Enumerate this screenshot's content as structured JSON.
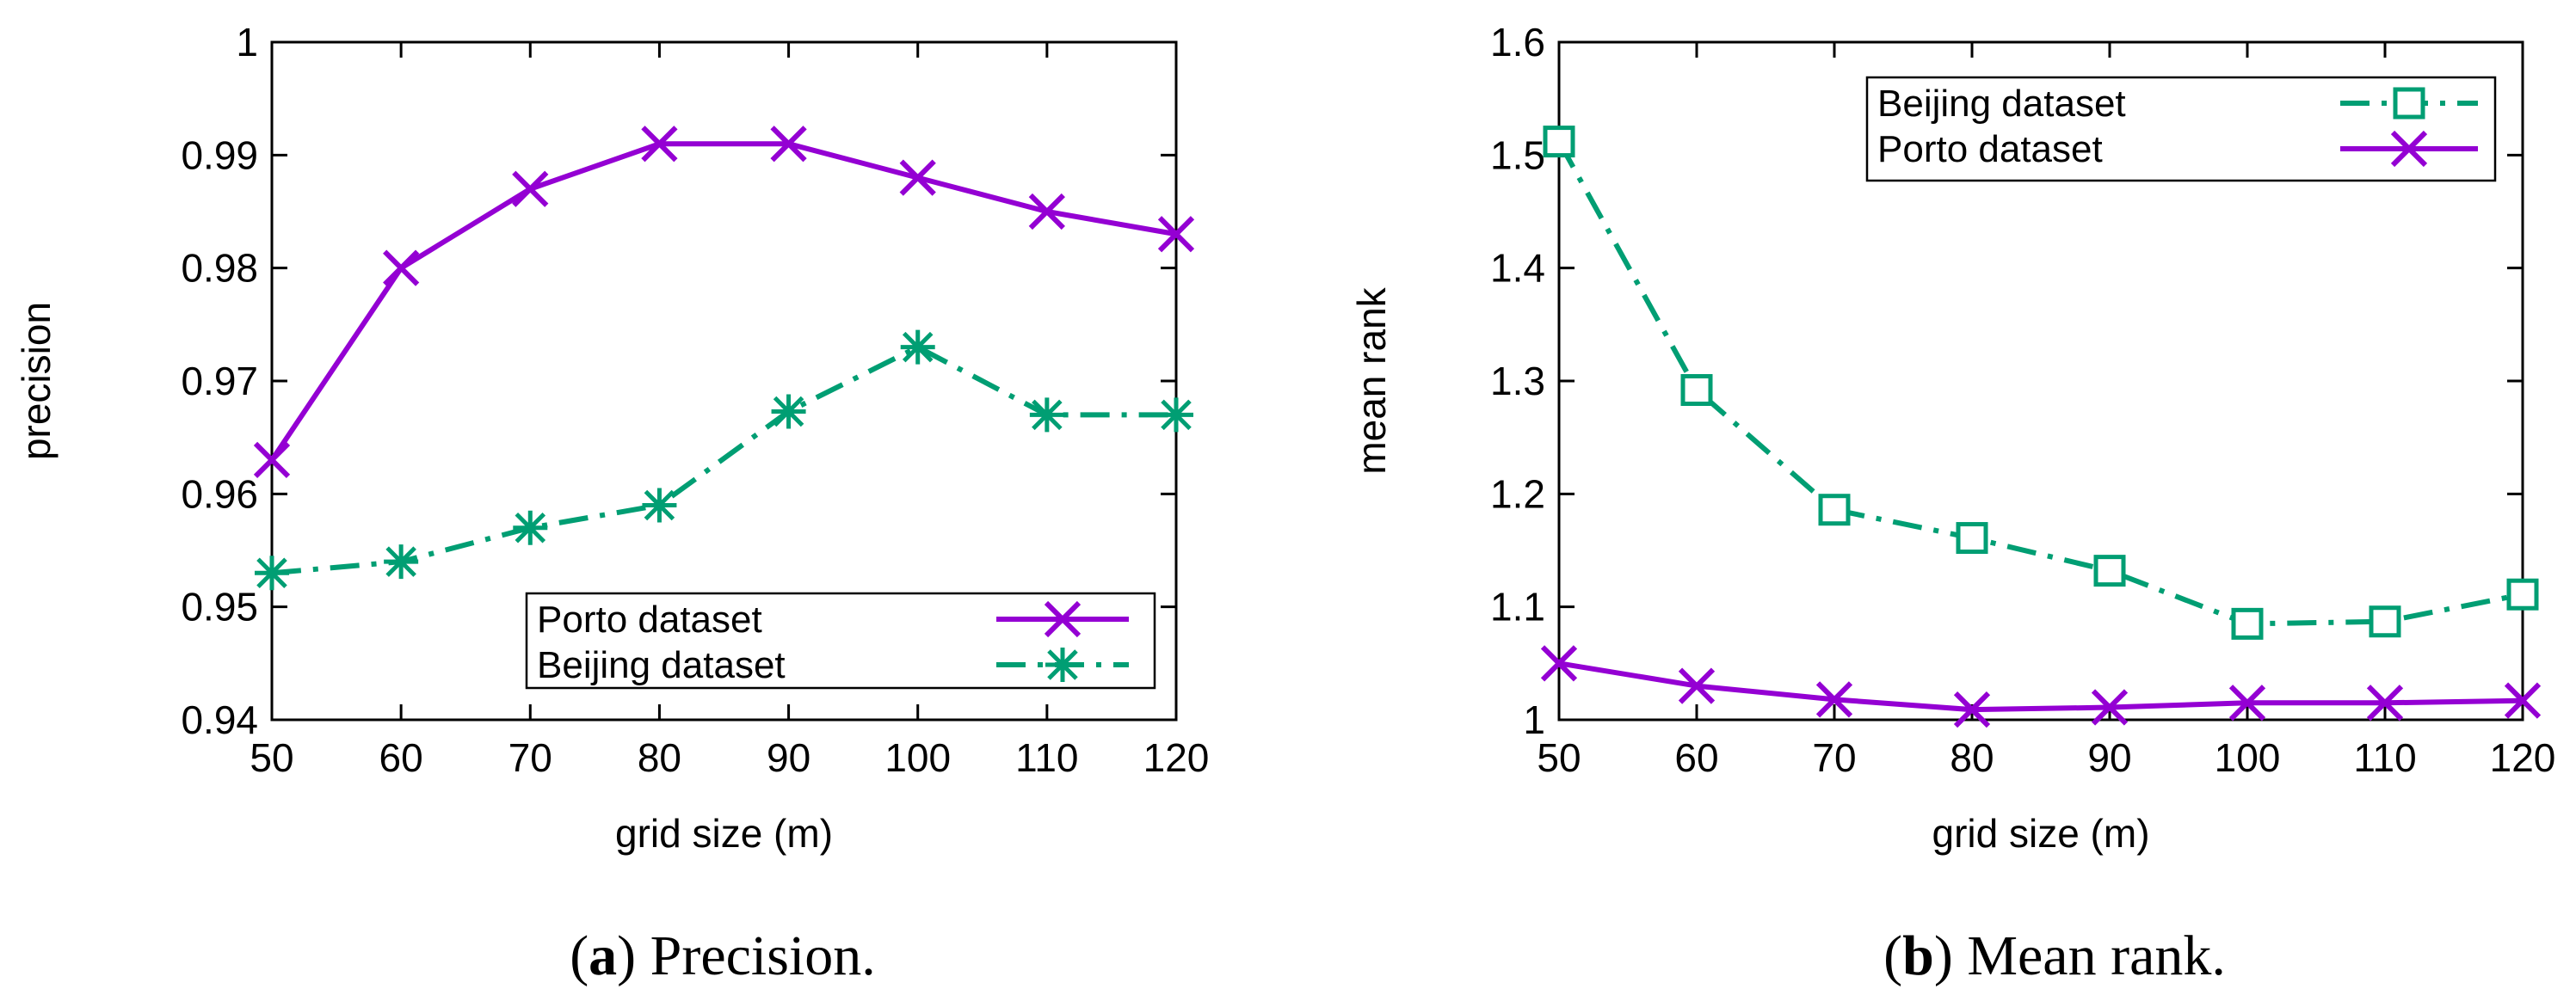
{
  "figure": {
    "captions": [
      {
        "letter": "a",
        "text": "Precision."
      },
      {
        "letter": "b",
        "text": "Mean rank."
      }
    ]
  },
  "colors": {
    "porto": "#9400d3",
    "beijing": "#009e73",
    "axis": "#000000"
  },
  "chart_data": [
    {
      "type": "line",
      "title": "",
      "xlabel": "grid size (m)",
      "ylabel": "precision",
      "x": [
        50,
        60,
        70,
        80,
        90,
        100,
        110,
        120
      ],
      "xlim": [
        50,
        120
      ],
      "ylim": [
        0.94,
        1
      ],
      "xticks": [
        "50",
        "60",
        "70",
        "80",
        "90",
        "100",
        "110",
        "120"
      ],
      "yticks": [
        "0.94",
        "0.95",
        "0.96",
        "0.97",
        "0.98",
        "0.99",
        "1"
      ],
      "grid": false,
      "legend_position": "bottom-right",
      "series": [
        {
          "name": "Porto dataset",
          "color": "#9400d3",
          "marker": "x",
          "dash": "solid",
          "values": [
            0.963,
            0.98,
            0.987,
            0.991,
            0.991,
            0.988,
            0.985,
            0.983
          ]
        },
        {
          "name": "Beijing dataset",
          "color": "#009e73",
          "marker": "asterisk",
          "dash": "dash-dot",
          "values": [
            0.953,
            0.954,
            0.957,
            0.959,
            0.9673,
            0.973,
            0.967,
            0.967
          ]
        }
      ]
    },
    {
      "type": "line",
      "title": "",
      "xlabel": "grid size (m)",
      "ylabel": "mean rank",
      "x": [
        50,
        60,
        70,
        80,
        90,
        100,
        110,
        120
      ],
      "xlim": [
        50,
        120
      ],
      "ylim": [
        1,
        1.6
      ],
      "xticks": [
        "50",
        "60",
        "70",
        "80",
        "90",
        "100",
        "110",
        "120"
      ],
      "yticks": [
        "1",
        "1.1",
        "1.2",
        "1.3",
        "1.4",
        "1.5",
        "1.6"
      ],
      "grid": false,
      "legend_position": "top-right",
      "series": [
        {
          "name": "Beijing dataset",
          "color": "#009e73",
          "marker": "square",
          "dash": "dash-dot",
          "values": [
            1.512,
            1.292,
            1.186,
            1.161,
            1.132,
            1.085,
            1.087,
            1.111
          ]
        },
        {
          "name": "Porto dataset",
          "color": "#9400d3",
          "marker": "x",
          "dash": "solid",
          "values": [
            1.05,
            1.03,
            1.018,
            1.009,
            1.011,
            1.015,
            1.015,
            1.017
          ]
        }
      ]
    }
  ]
}
